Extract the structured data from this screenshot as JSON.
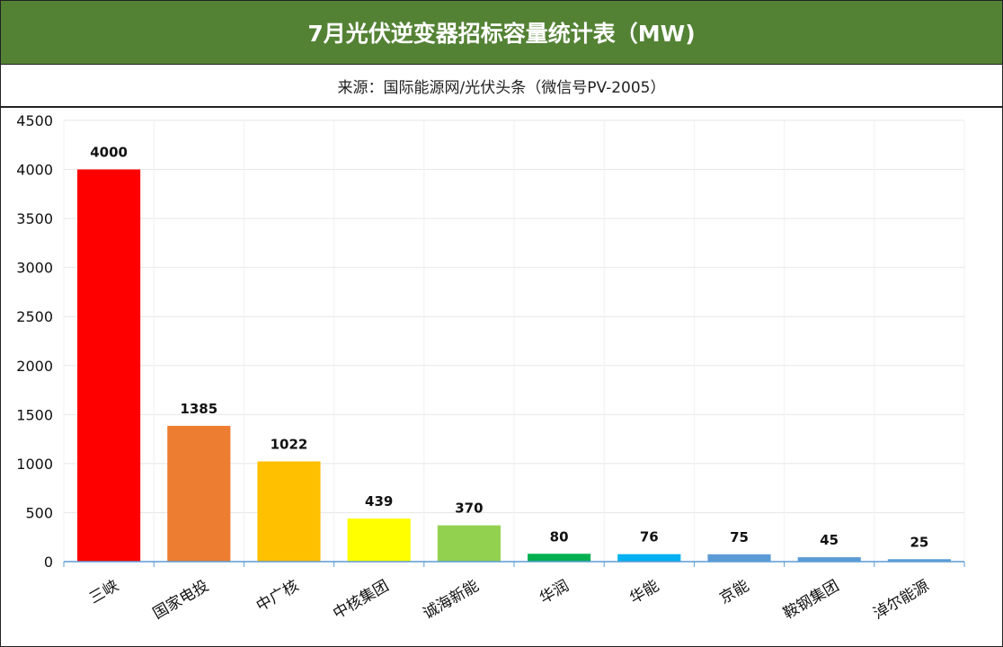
{
  "chart_data": {
    "type": "bar",
    "title": "7月光伏逆变器招标容量统计表（MW)",
    "subtitle": "来源：国际能源网/光伏头条（微信号PV-2005）",
    "categories": [
      "三峡",
      "国家电投",
      "中广核",
      "中核集团",
      "诚海新能",
      "华润",
      "华能",
      "京能",
      "鞍钢集团",
      "淖尔能源"
    ],
    "values": [
      4000,
      1385,
      1022,
      439,
      370,
      80,
      76,
      75,
      45,
      25
    ],
    "data_labels": [
      "4000",
      "1385",
      "1022",
      "439",
      "370",
      "80",
      "76",
      "75",
      "45",
      "25"
    ],
    "colors": [
      "#FF0000",
      "#ED7D31",
      "#FFC000",
      "#FFFF00",
      "#92D050",
      "#00B050",
      "#00B0F0",
      "#5B9BD5",
      "#5B9BD5",
      "#5B9BD5"
    ],
    "ylim": [
      0,
      4500
    ],
    "yticks": [
      0,
      500,
      1000,
      1500,
      2000,
      2500,
      3000,
      3500,
      4000,
      4500
    ],
    "ytick_labels": [
      "0",
      "500",
      "1000",
      "1500",
      "2000",
      "2500",
      "3000",
      "3500",
      "4000",
      "4500"
    ],
    "xlabel": "",
    "ylabel": "",
    "grid": true
  },
  "colors": {
    "title_bg": "#548235",
    "title_text": "#ffffff",
    "grid": "#E7E7E7",
    "axis": "#5B9BD5"
  }
}
